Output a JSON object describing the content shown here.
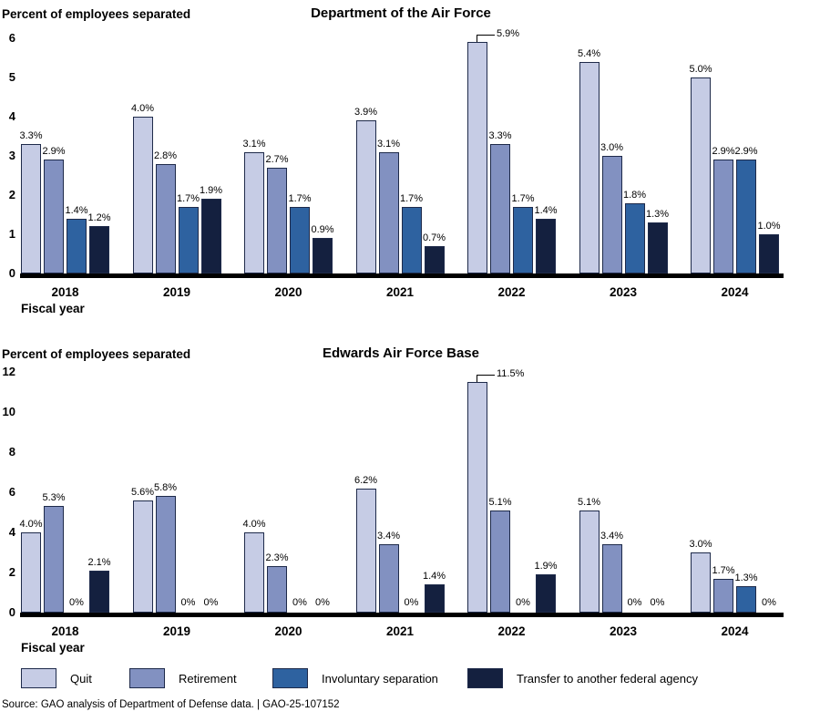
{
  "page": {
    "source_note": "Source: GAO analysis of Department of Defense data.  |  GAO-25-107152"
  },
  "legend": {
    "items": [
      {
        "label": "Quit",
        "color": "#c6cce5"
      },
      {
        "label": "Retirement",
        "color": "#8291c1"
      },
      {
        "label": "Involuntary separation",
        "color": "#2e62a0"
      },
      {
        "label": "Transfer to another federal agency",
        "color": "#14203f"
      }
    ]
  },
  "chart_data": [
    {
      "type": "bar",
      "title": "Department of the Air Force",
      "ylabel": "Percent of employees separated",
      "xlabel": "Fiscal year",
      "categories": [
        "2018",
        "2019",
        "2020",
        "2021",
        "2022",
        "2023",
        "2024"
      ],
      "ylim": [
        0,
        6
      ],
      "ytick_step": 1,
      "grid": false,
      "legend_position": "bottom",
      "series": [
        {
          "name": "Quit",
          "values": [
            3.3,
            4.0,
            3.1,
            3.9,
            5.9,
            5.4,
            5.0
          ],
          "labels": [
            "3.3%",
            "4.0%",
            "3.1%",
            "3.9%",
            "5.9%",
            "5.4%",
            "5.0%"
          ]
        },
        {
          "name": "Retirement",
          "values": [
            2.9,
            2.8,
            2.7,
            3.1,
            3.3,
            3.0,
            2.9
          ],
          "labels": [
            "2.9%",
            "2.8%",
            "2.7%",
            "3.1%",
            "3.3%",
            "3.0%",
            "2.9%"
          ]
        },
        {
          "name": "Involuntary separation",
          "values": [
            1.4,
            1.7,
            1.7,
            1.7,
            1.7,
            1.8,
            2.9
          ],
          "labels": [
            "1.4%",
            "1.7%",
            "1.7%",
            "1.7%",
            "1.7%",
            "1.8%",
            "2.9%"
          ]
        },
        {
          "name": "Transfer to another federal agency",
          "values": [
            1.2,
            1.9,
            0.9,
            0.7,
            1.4,
            1.3,
            1.0
          ],
          "labels": [
            "1.2%",
            "1.9%",
            "0.9%",
            "0.7%",
            "1.4%",
            "1.3%",
            "1.0%"
          ]
        }
      ],
      "callouts": [
        {
          "series": 0,
          "index": 4,
          "label": "5.9%"
        }
      ]
    },
    {
      "type": "bar",
      "title": "Edwards Air Force Base",
      "ylabel": "Percent of employees separated",
      "xlabel": "Fiscal year",
      "categories": [
        "2018",
        "2019",
        "2020",
        "2021",
        "2022",
        "2023",
        "2024"
      ],
      "ylim": [
        0,
        12
      ],
      "ytick_step": 2,
      "grid": false,
      "legend_position": "bottom",
      "series": [
        {
          "name": "Quit",
          "values": [
            4.0,
            5.6,
            4.0,
            6.2,
            11.5,
            5.1,
            3.0
          ],
          "labels": [
            "4.0%",
            "5.6%",
            "4.0%",
            "6.2%",
            "11.5%",
            "5.1%",
            "3.0%"
          ]
        },
        {
          "name": "Retirement",
          "values": [
            5.3,
            5.8,
            2.3,
            3.4,
            5.1,
            3.4,
            1.7
          ],
          "labels": [
            "5.3%",
            "5.8%",
            "2.3%",
            "3.4%",
            "5.1%",
            "3.4%",
            "1.7%"
          ]
        },
        {
          "name": "Involuntary separation",
          "values": [
            0,
            0,
            0,
            0,
            0,
            0,
            1.3
          ],
          "labels": [
            "0%",
            "0%",
            "0%",
            "0%",
            "0%",
            "0%",
            "1.3%"
          ]
        },
        {
          "name": "Transfer to another federal agency",
          "values": [
            2.1,
            0,
            0,
            1.4,
            1.9,
            0,
            0
          ],
          "labels": [
            "2.1%",
            "0%",
            "0%",
            "1.4%",
            "1.9%",
            "0%",
            "0%"
          ]
        }
      ],
      "callouts": [
        {
          "series": 0,
          "index": 4,
          "label": "11.5%"
        }
      ]
    }
  ]
}
